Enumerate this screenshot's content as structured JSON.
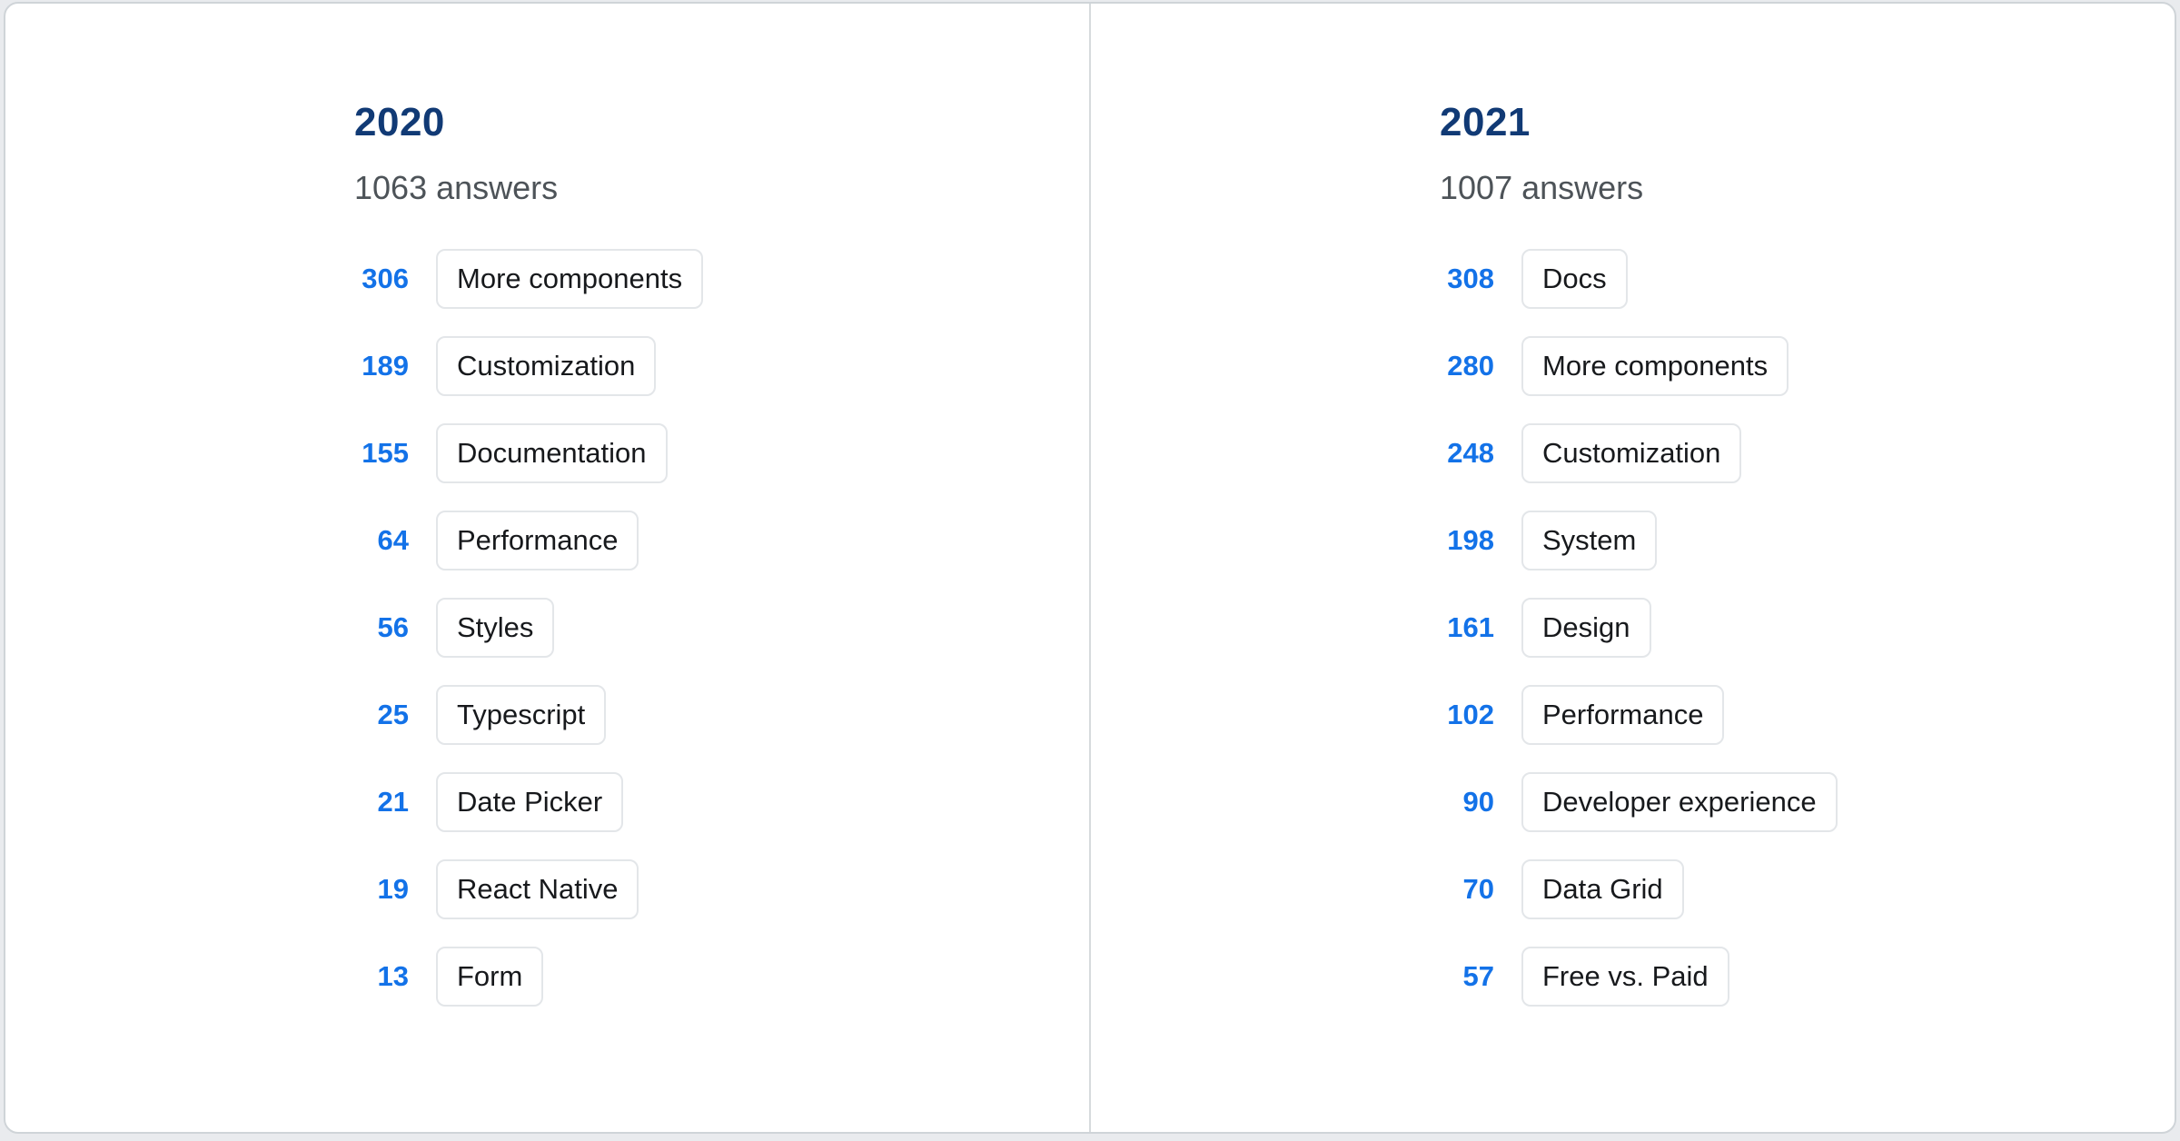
{
  "colors": {
    "page_background": "#e9ebee",
    "card_background": "#ffffff",
    "card_border": "#cfd4d8",
    "divider": "#d6dadd",
    "year_heading": "#113a75",
    "answers_text": "#4d5358",
    "count_blue": "#1372e8",
    "label_text": "#17191c",
    "chip_border": "#e3e6e9"
  },
  "columns": [
    {
      "year": "2020",
      "answers_label": "1063 answers",
      "items": [
        {
          "count": "306",
          "label": "More components"
        },
        {
          "count": "189",
          "label": "Customization"
        },
        {
          "count": "155",
          "label": "Documentation"
        },
        {
          "count": "64",
          "label": "Performance"
        },
        {
          "count": "56",
          "label": "Styles"
        },
        {
          "count": "25",
          "label": "Typescript"
        },
        {
          "count": "21",
          "label": "Date Picker"
        },
        {
          "count": "19",
          "label": "React Native"
        },
        {
          "count": "13",
          "label": "Form"
        }
      ]
    },
    {
      "year": "2021",
      "answers_label": "1007 answers",
      "items": [
        {
          "count": "308",
          "label": "Docs"
        },
        {
          "count": "280",
          "label": "More components"
        },
        {
          "count": "248",
          "label": "Customization"
        },
        {
          "count": "198",
          "label": "System"
        },
        {
          "count": "161",
          "label": "Design"
        },
        {
          "count": "102",
          "label": "Performance"
        },
        {
          "count": "90",
          "label": "Developer experience"
        },
        {
          "count": "70",
          "label": "Data Grid"
        },
        {
          "count": "57",
          "label": "Free vs. Paid"
        }
      ]
    }
  ],
  "chart_data": {
    "type": "table",
    "title": "Top survey answers by year",
    "series": [
      {
        "name": "2020",
        "total_answers": 1063,
        "categories": [
          "More components",
          "Customization",
          "Documentation",
          "Performance",
          "Styles",
          "Typescript",
          "Date Picker",
          "React Native",
          "Form"
        ],
        "values": [
          306,
          189,
          155,
          64,
          56,
          25,
          21,
          19,
          13
        ]
      },
      {
        "name": "2021",
        "total_answers": 1007,
        "categories": [
          "Docs",
          "More components",
          "Customization",
          "System",
          "Design",
          "Performance",
          "Developer experience",
          "Data Grid",
          "Free vs. Paid"
        ],
        "values": [
          308,
          280,
          248,
          198,
          161,
          102,
          90,
          70,
          57
        ]
      }
    ],
    "layout": "two-column comparison, ranked descending, counts left of category chips"
  }
}
